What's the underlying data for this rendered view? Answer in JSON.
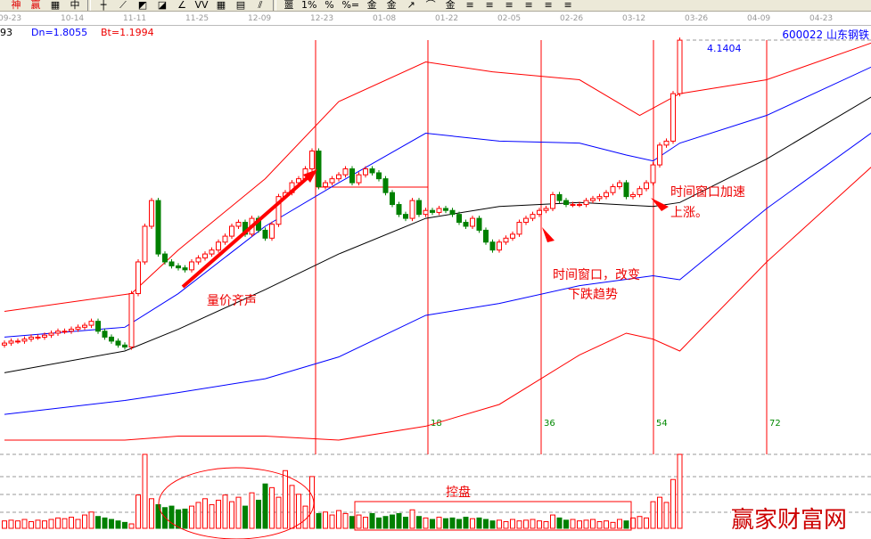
{
  "toolbar": {
    "items": [
      {
        "icon": "shen-icon",
        "label": "神",
        "color": "#e00000"
      },
      {
        "icon": "ying-icon",
        "label": "赢",
        "color": "#e00000"
      },
      {
        "icon": "grid-icon",
        "label": "▦"
      },
      {
        "icon": "middle-icon",
        "label": "中"
      },
      {
        "icon": "cross-icon",
        "label": "┼"
      },
      {
        "icon": "fan-icon",
        "label": "⟋"
      },
      {
        "icon": "fan2-icon",
        "label": "◩"
      },
      {
        "icon": "fan3-icon",
        "label": "◪"
      },
      {
        "icon": "angle-icon",
        "label": "∠"
      },
      {
        "icon": "wave-icon",
        "label": "VV"
      },
      {
        "icon": "table-icon",
        "label": "▦"
      },
      {
        "icon": "table2-icon",
        "label": "▤"
      },
      {
        "icon": "channel-icon",
        "label": "⫽"
      },
      {
        "icon": "stat-icon",
        "label": "噩"
      },
      {
        "icon": "percent-line-icon",
        "label": "1%"
      },
      {
        "icon": "percent-icon",
        "label": "%"
      },
      {
        "icon": "percent-eq-icon",
        "label": "%="
      },
      {
        "icon": "gold-icon",
        "label": "金"
      },
      {
        "icon": "gold-line-icon",
        "label": "金"
      },
      {
        "icon": "arrow-icon",
        "label": "↗"
      },
      {
        "icon": "cycle-icon",
        "label": "⌒"
      },
      {
        "icon": "gold2-icon",
        "label": "金"
      },
      {
        "icon": "line1-icon",
        "label": "≡"
      },
      {
        "icon": "line2-icon",
        "label": "≡"
      },
      {
        "icon": "line3-icon",
        "label": "≡"
      },
      {
        "icon": "line4-icon",
        "label": "≡"
      },
      {
        "icon": "line5-icon",
        "label": "≡"
      },
      {
        "icon": "line6-icon",
        "label": "≡"
      }
    ]
  },
  "date_axis": [
    "09-23",
    "10-14",
    "11-11",
    "11-25",
    "12-09",
    "12-23",
    "01-08",
    "01-22",
    "02-05",
    "02-26",
    "03-12",
    "03-26",
    "04-09",
    "04-23"
  ],
  "info": {
    "left_value": "93",
    "dn": "Dn=1.8055",
    "bt": "Bt=1.1994",
    "stock": "600022 山东钢铁",
    "price_label": "4.1404"
  },
  "colors": {
    "up": "#ff0000",
    "down": "#008000",
    "upper_band": "#ff0000",
    "mid_band": "#0000ff",
    "ma": "#000000",
    "annotation": "#ff0000"
  },
  "annotations": {
    "volume_price": "量价齐声",
    "window1_line1": "时间窗口，改变",
    "window1_line2": "下跌趋势",
    "window2_line1": "时间窗口加速",
    "window2_line2": "上涨。",
    "control": "控盘",
    "watermark": "赢家财富网"
  },
  "chart_data": {
    "type": "candlestick",
    "closes": [
      2.61,
      2.62,
      2.62,
      2.63,
      2.64,
      2.64,
      2.65,
      2.66,
      2.67,
      2.67,
      2.68,
      2.69,
      2.7,
      2.72,
      2.67,
      2.64,
      2.62,
      2.6,
      2.59,
      2.86,
      3.02,
      3.2,
      3.33,
      3.06,
      3.02,
      3.0,
      2.99,
      2.98,
      3.02,
      3.04,
      3.06,
      3.08,
      3.12,
      3.15,
      3.2,
      3.22,
      3.16,
      3.24,
      3.18,
      3.14,
      3.21,
      3.35,
      3.37,
      3.42,
      3.44,
      3.49,
      3.58,
      3.4,
      3.42,
      3.44,
      3.46,
      3.49,
      3.42,
      3.46,
      3.49,
      3.47,
      3.44,
      3.37,
      3.31,
      3.26,
      3.24,
      3.33,
      3.26,
      3.28,
      3.27,
      3.29,
      3.28,
      3.26,
      3.22,
      3.2,
      3.24,
      3.18,
      3.12,
      3.08,
      3.12,
      3.14,
      3.16,
      3.22,
      3.24,
      3.26,
      3.28,
      3.29,
      3.36,
      3.33,
      3.31,
      3.31,
      3.31,
      3.33,
      3.34,
      3.35,
      3.37,
      3.4,
      3.42,
      3.35,
      3.36,
      3.39,
      3.42,
      3.51,
      3.61,
      3.63,
      3.87,
      4.14
    ],
    "volumes": [
      10,
      11,
      10,
      12,
      9,
      11,
      10,
      12,
      14,
      13,
      15,
      12,
      18,
      22,
      16,
      14,
      12,
      10,
      8,
      6,
      45,
      100,
      40,
      32,
      28,
      30,
      25,
      26,
      30,
      35,
      40,
      32,
      38,
      45,
      36,
      42,
      30,
      48,
      38,
      60,
      55,
      42,
      78,
      58,
      46,
      30,
      70,
      20,
      22,
      18,
      24,
      20,
      16,
      18,
      15,
      20,
      14,
      16,
      18,
      20,
      15,
      25,
      16,
      14,
      12,
      15,
      13,
      14,
      12,
      15,
      13,
      14,
      12,
      10,
      11,
      9,
      12,
      10,
      11,
      12,
      10,
      9,
      18,
      14,
      11,
      12,
      10,
      11,
      12,
      9,
      10,
      8,
      12,
      10,
      14,
      16,
      14,
      36,
      42,
      35,
      66,
      100
    ],
    "bands": {
      "upper_outer": [
        [
          0,
          2.77
        ],
        [
          19,
          2.86
        ],
        [
          26,
          3.08
        ],
        [
          39,
          3.44
        ],
        [
          50,
          3.83
        ],
        [
          63,
          4.03
        ],
        [
          73,
          3.98
        ],
        [
          86,
          3.94
        ],
        [
          95,
          3.76
        ],
        [
          101,
          3.87
        ],
        [
          114,
          3.94
        ],
        [
          130,
          4.13
        ]
      ],
      "upper_inner": [
        [
          0,
          2.64
        ],
        [
          18,
          2.69
        ],
        [
          26,
          2.86
        ],
        [
          39,
          3.2
        ],
        [
          50,
          3.42
        ],
        [
          63,
          3.67
        ],
        [
          74,
          3.63
        ],
        [
          86,
          3.62
        ],
        [
          93,
          3.56
        ],
        [
          97,
          3.53
        ],
        [
          101,
          3.62
        ],
        [
          114,
          3.76
        ],
        [
          130,
          4.01
        ]
      ],
      "middle": [
        [
          0,
          2.46
        ],
        [
          18,
          2.57
        ],
        [
          26,
          2.68
        ],
        [
          39,
          2.88
        ],
        [
          50,
          3.06
        ],
        [
          63,
          3.24
        ],
        [
          74,
          3.3
        ],
        [
          86,
          3.32
        ],
        [
          97,
          3.3
        ],
        [
          101,
          3.32
        ],
        [
          114,
          3.54
        ],
        [
          130,
          3.86
        ]
      ],
      "lower_inner": [
        [
          0,
          2.25
        ],
        [
          18,
          2.32
        ],
        [
          26,
          2.36
        ],
        [
          39,
          2.43
        ],
        [
          50,
          2.54
        ],
        [
          63,
          2.75
        ],
        [
          74,
          2.81
        ],
        [
          86,
          2.9
        ],
        [
          97,
          2.95
        ],
        [
          101,
          2.93
        ],
        [
          114,
          3.29
        ],
        [
          130,
          3.68
        ]
      ],
      "lower_outer": [
        [
          0,
          2.12
        ],
        [
          18,
          2.12
        ],
        [
          26,
          2.14
        ],
        [
          39,
          2.14
        ],
        [
          50,
          2.12
        ],
        [
          63,
          2.19
        ],
        [
          74,
          2.3
        ],
        [
          86,
          2.55
        ],
        [
          93,
          2.66
        ],
        [
          97,
          2.63
        ],
        [
          101,
          2.57
        ],
        [
          114,
          3.02
        ],
        [
          130,
          3.51
        ]
      ]
    },
    "time_window_labels": [
      "18",
      "36",
      "54",
      "72"
    ],
    "max_price": 4.1404
  }
}
